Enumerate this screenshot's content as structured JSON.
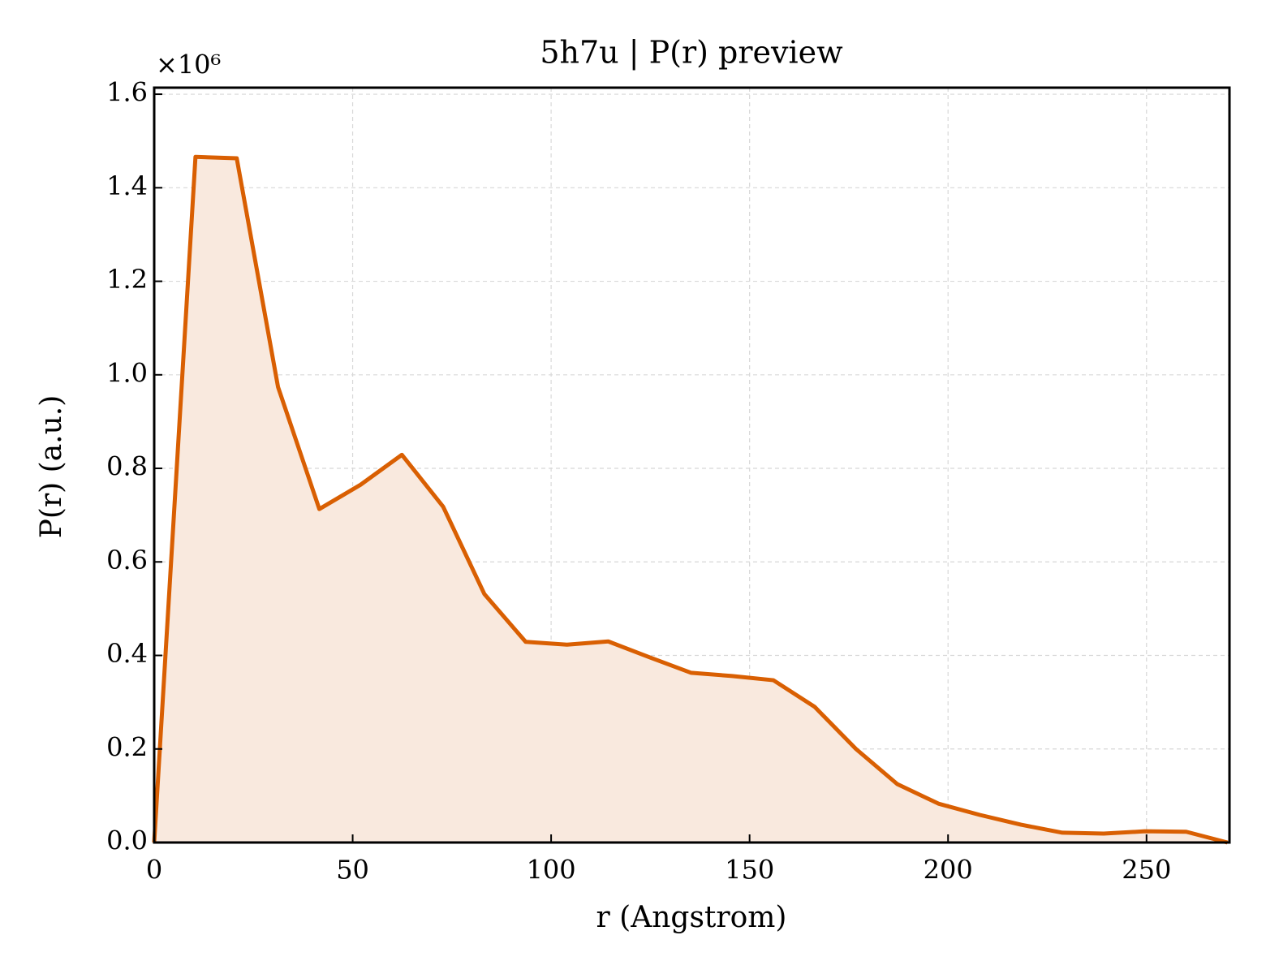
{
  "chart_data": {
    "type": "line",
    "title": "5h7u | P(r) preview",
    "x_label": "r (Angstrom)",
    "y_label": "P(r) (a.u.)",
    "y_offset_label": "×10⁶",
    "x": [
      0,
      10.4,
      20.8,
      31.2,
      41.6,
      52,
      62.4,
      72.8,
      83.2,
      93.6,
      104,
      114.4,
      124.8,
      135.2,
      145.6,
      156,
      166.4,
      176.8,
      187.2,
      197.6,
      208,
      218.4,
      228.8,
      239.2,
      249.6,
      260,
      270.4
    ],
    "series": [
      {
        "name": "P(r)",
        "color": "#d95f02",
        "fill_color": "#f9e9de",
        "values": [
          0,
          1.466,
          1.463,
          0.974,
          0.713,
          0.765,
          0.829,
          0.718,
          0.531,
          0.429,
          0.423,
          0.43,
          0.396,
          0.363,
          0.356,
          0.347,
          0.29,
          0.2,
          0.125,
          0.083,
          0.059,
          0.038,
          0.021,
          0.019,
          0.024,
          0.023,
          0
        ]
      }
    ],
    "xlim": [
      0,
      270.9
    ],
    "ylim": [
      0,
      1.614
    ],
    "xticks": [
      0,
      50,
      100,
      150,
      200,
      250
    ],
    "yticks": [
      {
        "value": 0,
        "label": "0.0"
      },
      0.2,
      0.4,
      0.6,
      0.8,
      {
        "value": 1,
        "label": "1.0"
      },
      1.2,
      1.4,
      1.6
    ],
    "grid": true
  }
}
